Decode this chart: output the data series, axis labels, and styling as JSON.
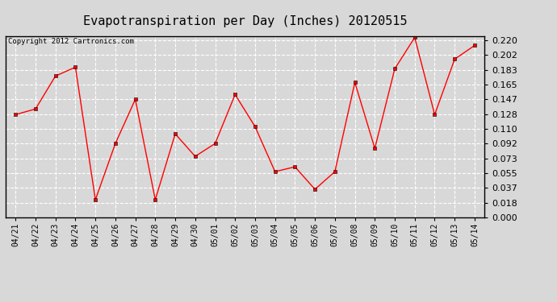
{
  "title": "Evapotranspiration per Day (Inches) 20120515",
  "copyright_text": "Copyright 2012 Cartronics.com",
  "dates": [
    "04/21",
    "04/22",
    "04/23",
    "04/24",
    "04/25",
    "04/26",
    "04/27",
    "04/28",
    "04/29",
    "04/30",
    "05/01",
    "05/02",
    "05/03",
    "05/04",
    "05/05",
    "05/06",
    "05/07",
    "05/08",
    "05/09",
    "05/10",
    "05/11",
    "05/12",
    "05/13",
    "05/14"
  ],
  "values": [
    0.128,
    0.135,
    0.176,
    0.187,
    0.022,
    0.092,
    0.147,
    0.022,
    0.104,
    0.076,
    0.092,
    0.153,
    0.113,
    0.057,
    0.063,
    0.035,
    0.057,
    0.168,
    0.086,
    0.185,
    0.224,
    0.128,
    0.197,
    0.214
  ],
  "ylim": [
    0.0,
    0.2255
  ],
  "yticks": [
    0.0,
    0.018,
    0.037,
    0.055,
    0.073,
    0.092,
    0.11,
    0.128,
    0.147,
    0.165,
    0.183,
    0.202,
    0.22
  ],
  "line_color": "red",
  "marker": "s",
  "marker_size": 2.5,
  "bg_color": "#d8d8d8",
  "plot_bg_color": "#d8d8d8",
  "grid_color": "white",
  "title_fontsize": 11,
  "copyright_fontsize": 6.5,
  "tick_fontsize": 7,
  "ytick_fontsize": 8
}
